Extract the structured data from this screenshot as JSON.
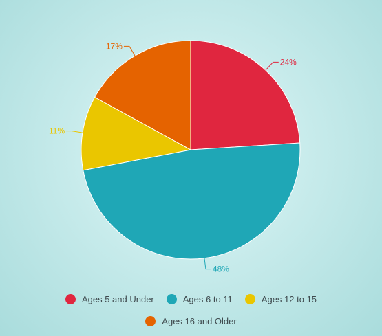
{
  "chart_data": {
    "type": "pie",
    "categories": [
      "Ages 5 and Under",
      "Ages 6 to 11",
      "Ages 12 to 15",
      "Ages 16 and Older"
    ],
    "values": [
      24,
      48,
      11,
      17
    ],
    "labels": [
      "24%",
      "48%",
      "11%",
      "17%"
    ],
    "colors": [
      "#e0263f",
      "#1fa7b6",
      "#eac600",
      "#e56300"
    ],
    "legend_placement": "bottom",
    "title": ""
  }
}
